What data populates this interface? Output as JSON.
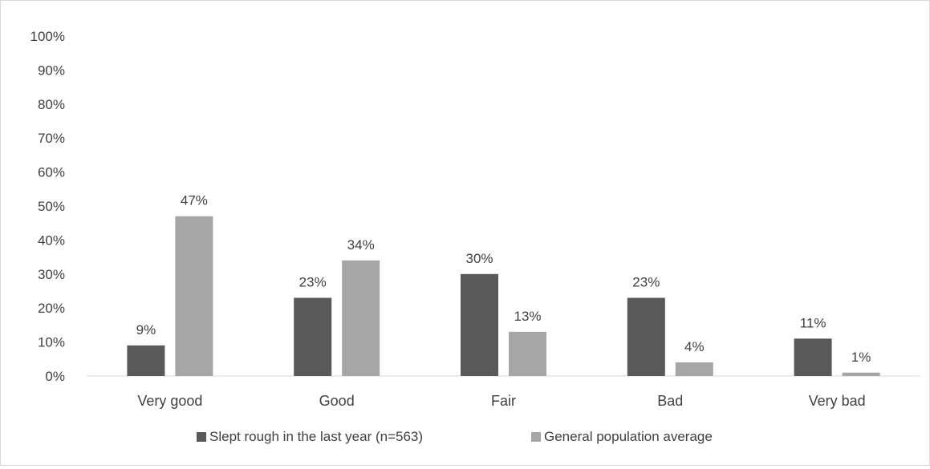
{
  "chart_data": {
    "type": "bar",
    "categories": [
      "Very good",
      "Good",
      "Fair",
      "Bad",
      "Very bad"
    ],
    "series": [
      {
        "name": "Slept rough in the last year (n=563)",
        "values": [
          9,
          23,
          30,
          23,
          11
        ],
        "labels": [
          "9%",
          "23%",
          "30%",
          "23%",
          "11%"
        ],
        "color": "#595959"
      },
      {
        "name": "General population average",
        "values": [
          47,
          34,
          13,
          4,
          1
        ],
        "labels": [
          "47%",
          "34%",
          "13%",
          "4%",
          "1%"
        ],
        "color": "#a6a6a6"
      }
    ],
    "yticks": [
      "0%",
      "10%",
      "20%",
      "30%",
      "40%",
      "50%",
      "60%",
      "70%",
      "80%",
      "90%",
      "100%"
    ],
    "ylim": [
      0,
      100
    ],
    "title": "",
    "xlabel": "",
    "ylabel": "",
    "grid": false,
    "legend_position": "bottom",
    "axis_color": "#d9d9d9",
    "text_color": "#404040"
  }
}
